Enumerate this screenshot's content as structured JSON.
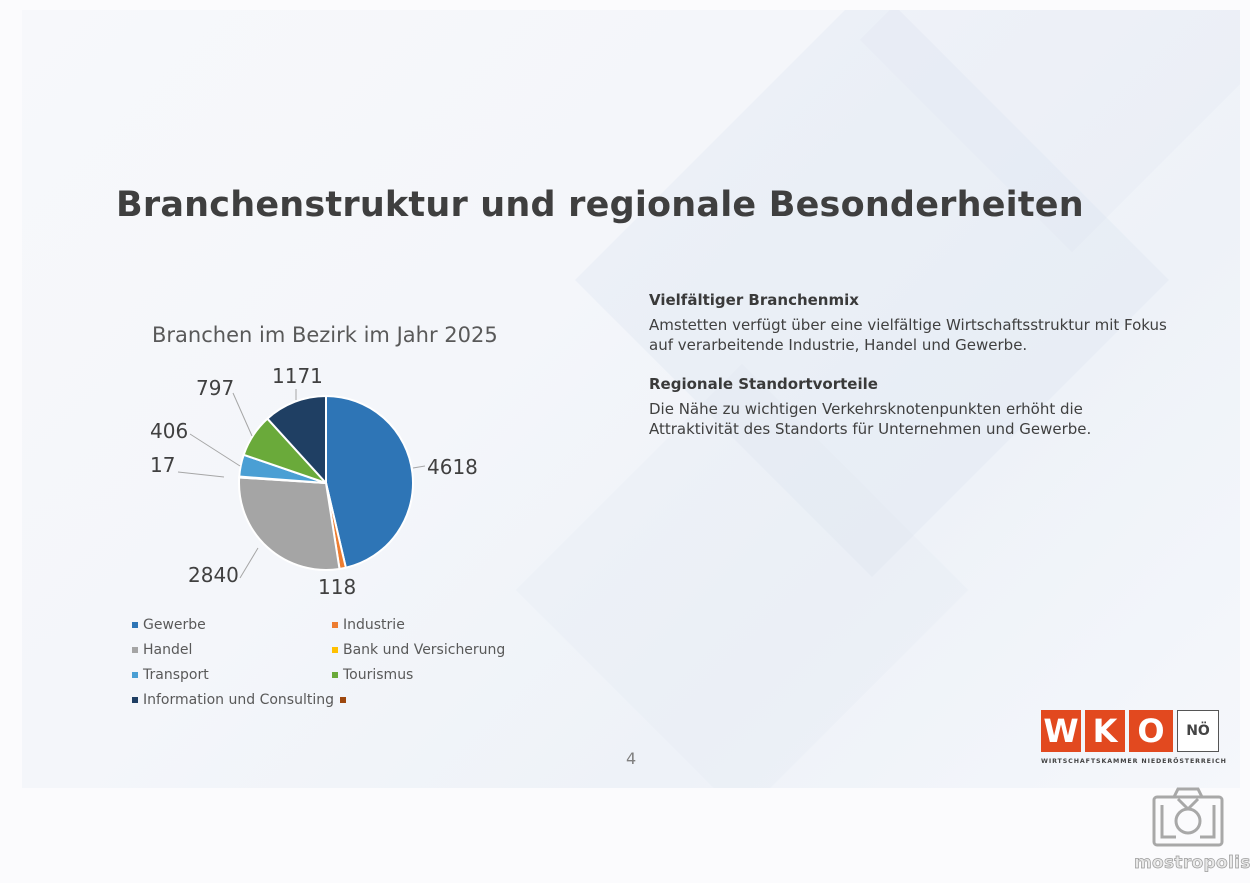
{
  "slide": {
    "title": "Branchenstruktur und regionale Besonderheiten",
    "page_number": "4"
  },
  "chart_data": {
    "type": "pie",
    "title": "Branchen im Bezirk im Jahr 2025",
    "categories": [
      "Gewerbe",
      "Industrie",
      "Handel",
      "Bank und Versicherung",
      "Transport",
      "Tourismus",
      "Information und Consulting"
    ],
    "values": [
      4618,
      118,
      2840,
      17,
      406,
      797,
      1171
    ],
    "colors": [
      "#2e75b6",
      "#ed7d31",
      "#a5a5a5",
      "#ffc000",
      "#4a9fd4",
      "#6aaa3a",
      "#1f3f63"
    ],
    "data_labels": [
      "4618",
      "118",
      "2840",
      "17",
      "406",
      "797",
      "1171"
    ],
    "legend_position": "bottom",
    "legend_extra_entry_color": "#9e480e"
  },
  "legend": {
    "items": [
      {
        "label": "Gewerbe",
        "color": "#2e75b6"
      },
      {
        "label": "Industrie",
        "color": "#ed7d31"
      },
      {
        "label": "Handel",
        "color": "#a5a5a5"
      },
      {
        "label": "Bank und Versicherung",
        "color": "#ffc000"
      },
      {
        "label": "Transport",
        "color": "#4a9fd4"
      },
      {
        "label": "Tourismus",
        "color": "#6aaa3a"
      },
      {
        "label": "Information und Consulting",
        "color": "#1f3f63"
      },
      {
        "label": "",
        "color": "#9e480e"
      }
    ]
  },
  "text_blocks": [
    {
      "heading": "Vielfältiger Branchenmix",
      "body": "Amstetten verfügt über eine vielfältige Wirtschaftsstruktur mit Fokus auf verarbeitende Industrie, Handel und Gewerbe."
    },
    {
      "heading": "Regionale Standortvorteile",
      "body": "Die Nähe zu wichtigen Verkehrsknotenpunkten erhöht die Attraktivität des Standorts für Unternehmen und Gewerbe."
    }
  ],
  "logo": {
    "letters": [
      "W",
      "K",
      "O"
    ],
    "region": "NÖ",
    "subtitle": "WIRTSCHAFTSKAMMER NIEDERÖSTERREICH",
    "brand_color": "#e2491f"
  },
  "watermark": {
    "text": "mostropolis"
  }
}
